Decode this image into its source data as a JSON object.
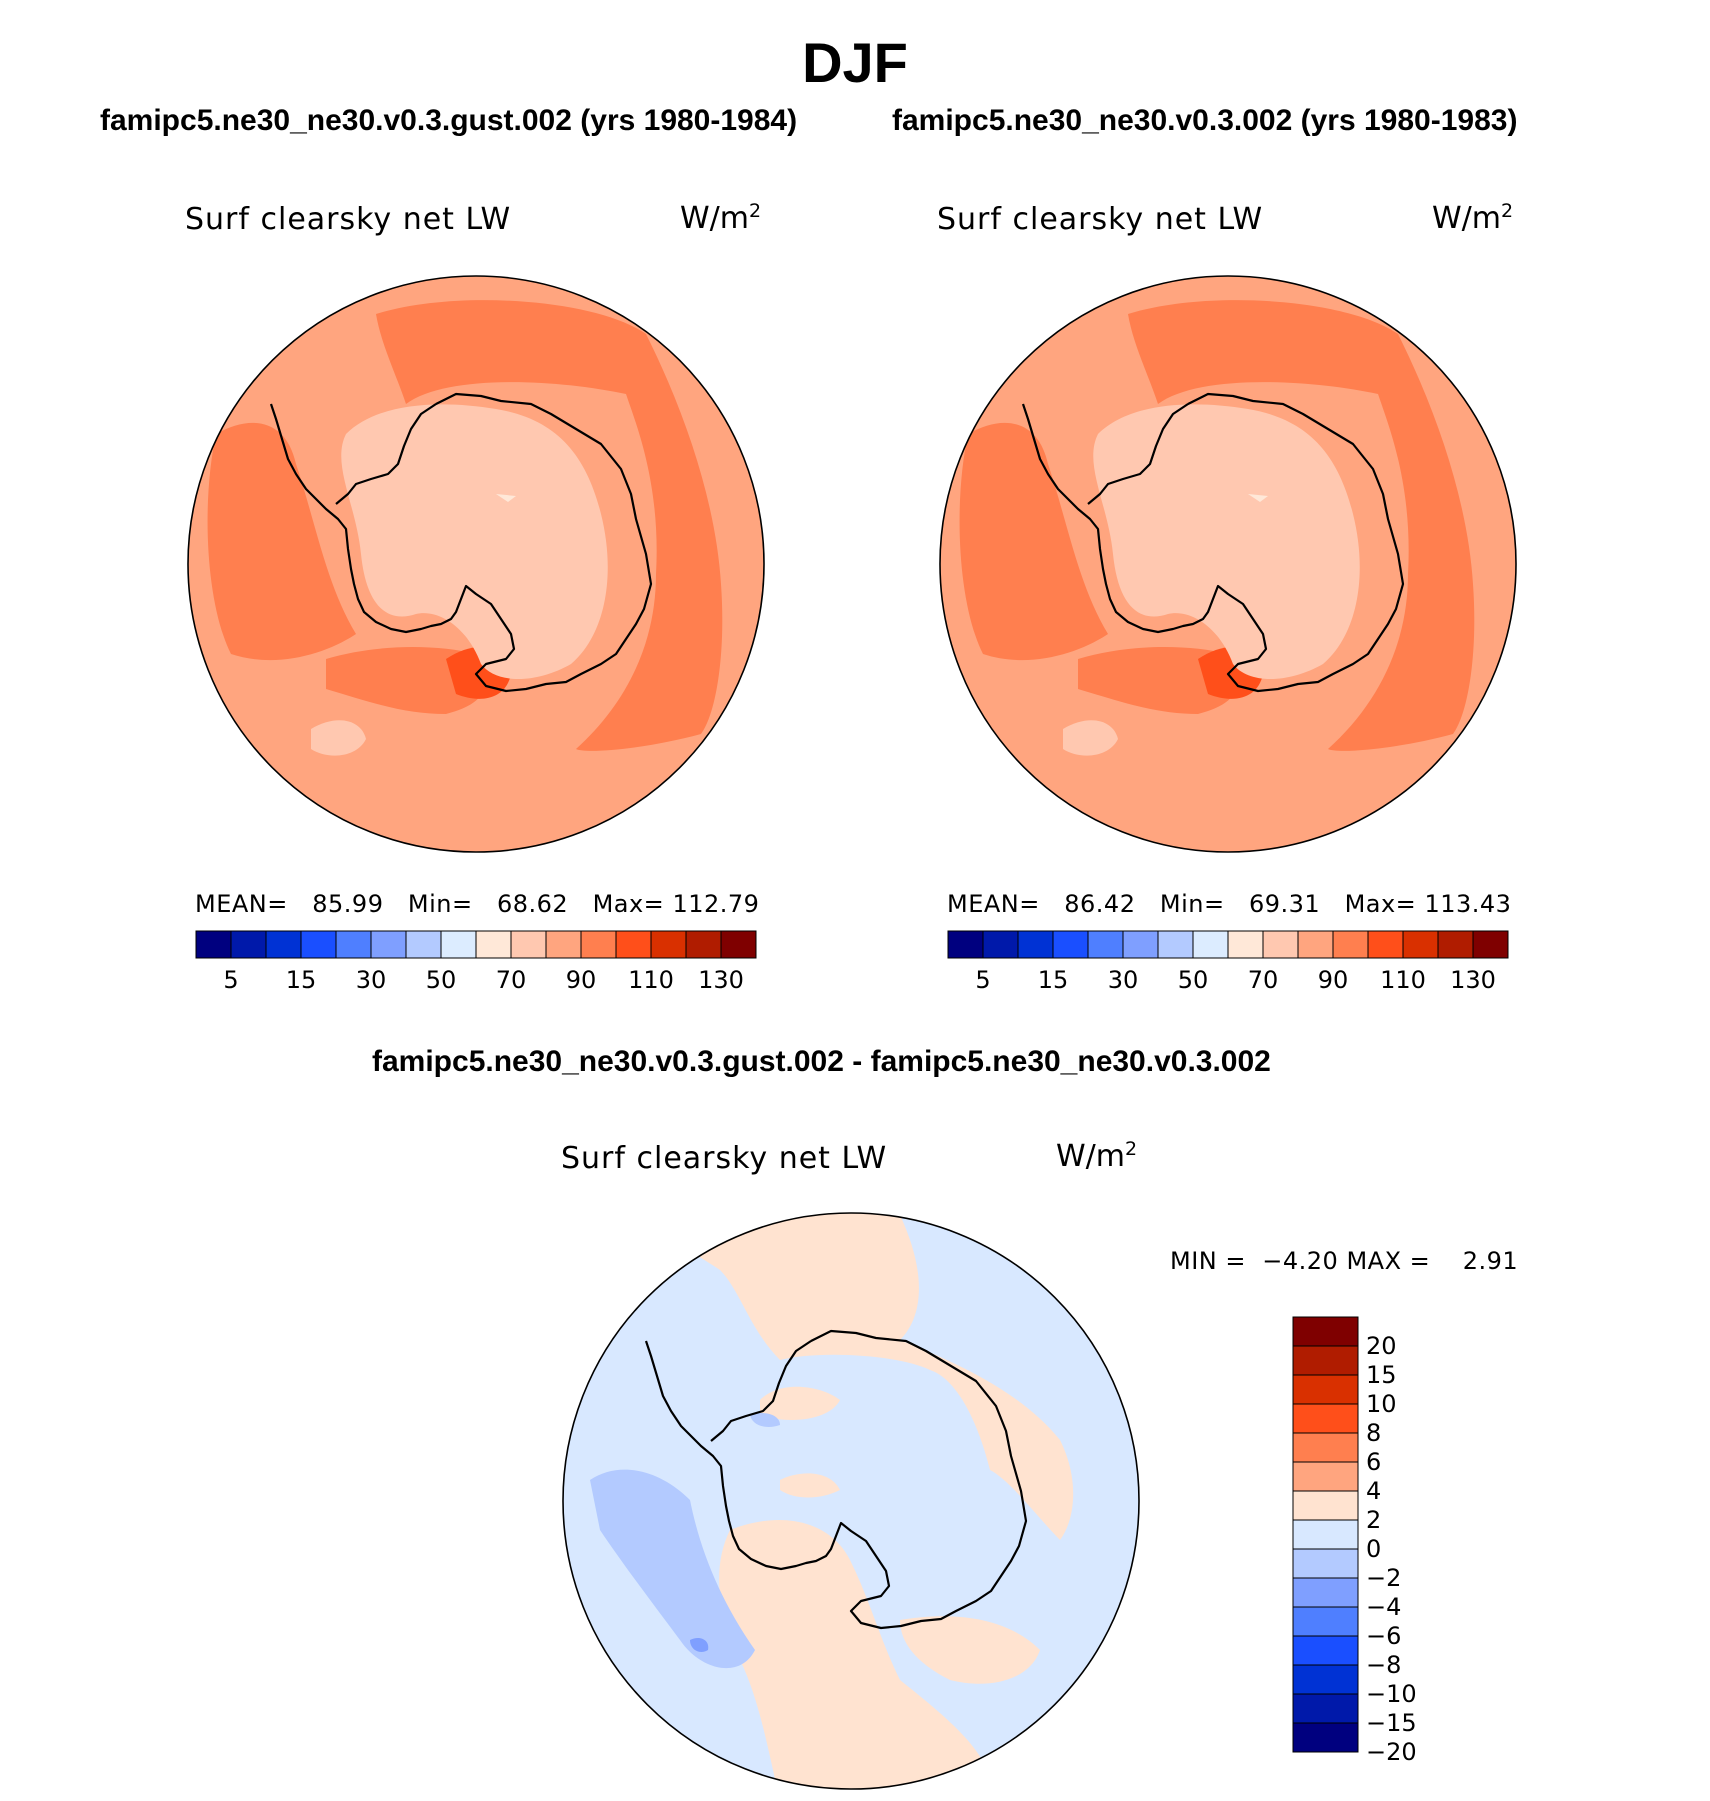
{
  "season": "DJF",
  "case_test": "famipc5.ne30_ne30.v0.3.gust.002 (yrs 1980-1984)",
  "case_control": "famipc5.ne30_ne30.v0.3.002 (yrs 1980-1983)",
  "diff_title": "famipc5.ne30_ne30.v0.3.gust.002 - famipc5.ne30_ne30.v0.3.002",
  "panels": {
    "test": {
      "variable": "Surf clearsky net LW",
      "units": "W/m",
      "units_exp": "2",
      "mean_label": "MEAN=",
      "mean": "85.99",
      "min_label": "Min=",
      "min": "68.62",
      "max_label": "Max=",
      "max": "112.79"
    },
    "control": {
      "variable": "Surf clearsky net LW",
      "units": "W/m",
      "units_exp": "2",
      "mean_label": "MEAN=",
      "mean": "86.42",
      "min_label": "Min=",
      "min": "69.31",
      "max_label": "Max=",
      "max": "113.43"
    },
    "diff": {
      "variable": "Surf clearsky net LW",
      "units": "W/m",
      "units_exp": "2",
      "min_label": "MIN =",
      "min": "−4.20",
      "max_label": "MAX =",
      "max": "2.91"
    }
  },
  "colorbar_abs": {
    "colors": [
      "#00007f",
      "#0019aa",
      "#0032d4",
      "#1a4fff",
      "#4f7fff",
      "#7f9fff",
      "#b3caff",
      "#dcecff",
      "#ffe8d8",
      "#ffc8b0",
      "#ffa57f",
      "#ff7f4f",
      "#ff4f1a",
      "#d93000",
      "#b01c00",
      "#7f0000"
    ],
    "labels": [
      "5",
      "15",
      "30",
      "50",
      "70",
      "90",
      "110",
      "130"
    ]
  },
  "colorbar_diff": {
    "colors": [
      "#7f0000",
      "#b01c00",
      "#d93000",
      "#ff4f1a",
      "#ff7f4f",
      "#ffa57f",
      "#ffe3d0",
      "#d8e8ff",
      "#b3caff",
      "#7f9fff",
      "#4f7fff",
      "#1a4fff",
      "#0032d4",
      "#0019aa",
      "#00007f"
    ],
    "labels": [
      "20",
      "15",
      "10",
      "8",
      "6",
      "4",
      "2",
      "0",
      "−2",
      "−4",
      "−6",
      "−8",
      "−10",
      "−15",
      "−20"
    ]
  }
}
